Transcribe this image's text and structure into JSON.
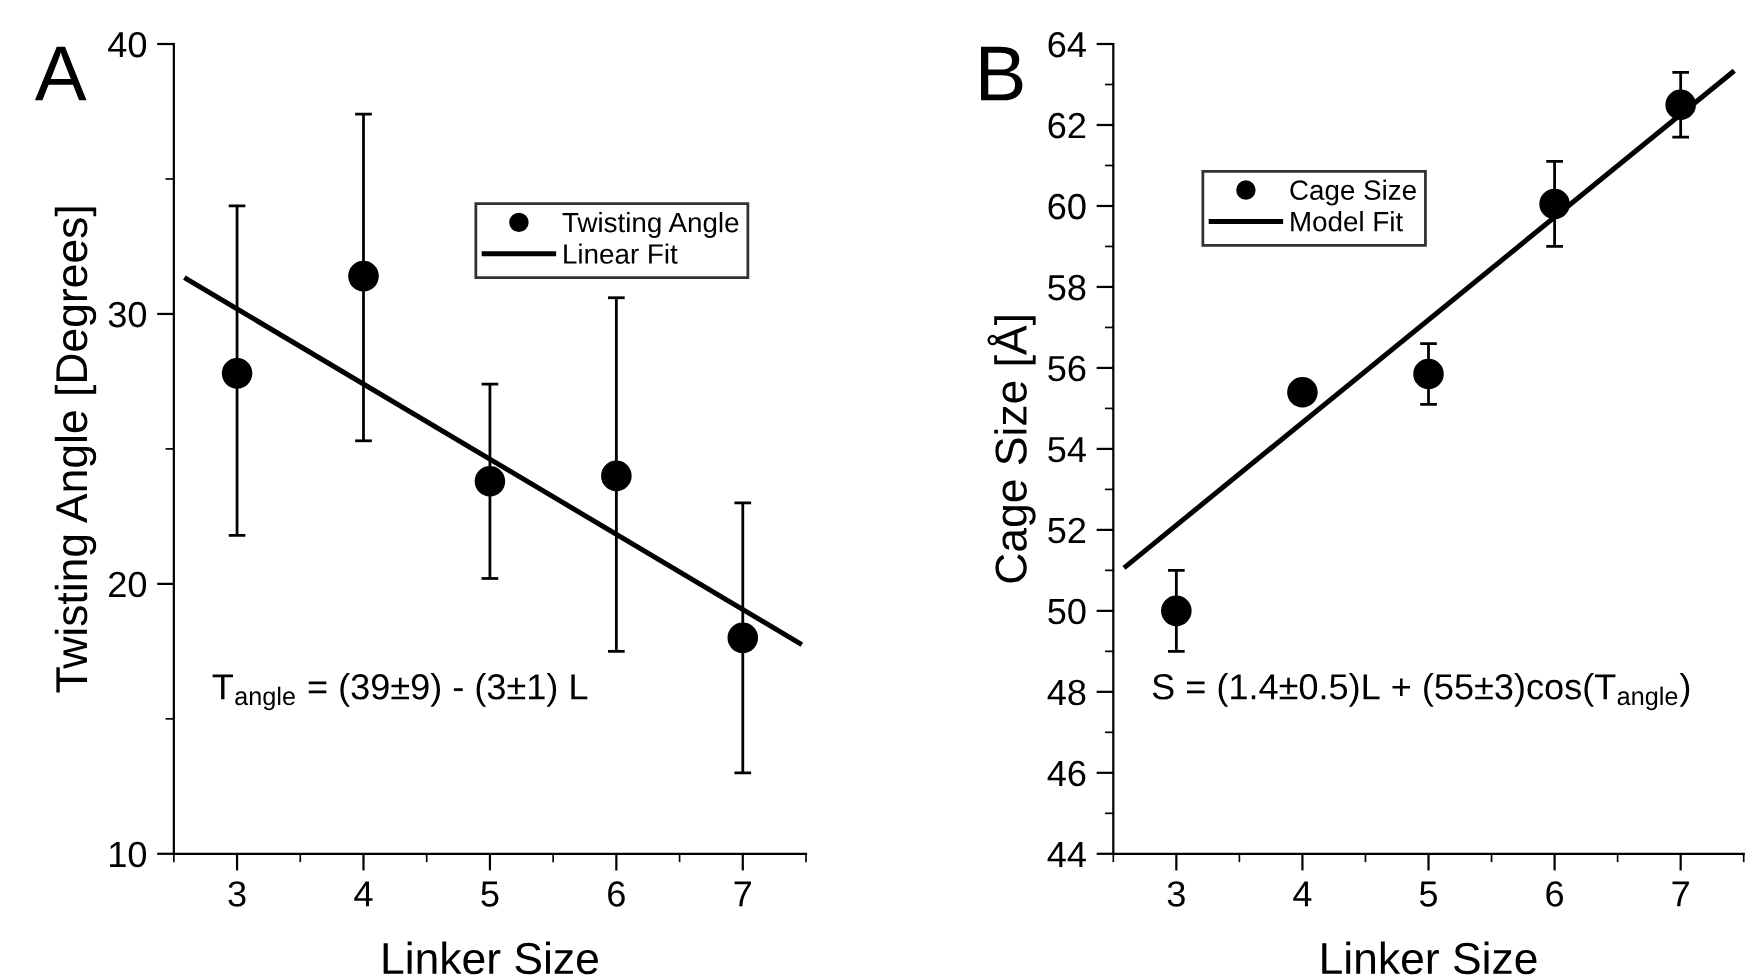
{
  "chart_data": [
    {
      "type": "scatter",
      "xlabel": "Linker Size",
      "ylabel": "Twisting Angle [Degrees]",
      "x": [
        3,
        4,
        5,
        6,
        7
      ],
      "xlim": [
        2.5,
        7.5
      ],
      "xticks": [
        3,
        4,
        5,
        6,
        7
      ],
      "ylim": [
        10,
        40
      ],
      "yticks": [
        10,
        20,
        30,
        40
      ],
      "grid": false,
      "legend": "top right",
      "annotations": [
        "A",
        "T$_{angle}$ = (39±9) - (3±1) L"
      ],
      "series": [
        {
          "name": "Twisting Angle",
          "marker": "circle",
          "color": "#000000",
          "values": [
            27.8,
            31.4,
            23.8,
            24.0,
            18.0
          ],
          "errors": [
            [
              21.8,
              34.0
            ],
            [
              25.3,
              37.4
            ],
            [
              20.2,
              27.4
            ],
            [
              17.5,
              30.6
            ],
            [
              13.0,
              23.0
            ]
          ]
        },
        {
          "name": "Linear Fit",
          "type": "line",
          "color": "#000000",
          "line_style": "solid",
          "x": [
            2.6,
            7.45
          ],
          "values": [
            31.3,
            17.8
          ]
        }
      ]
    },
    {
      "type": "scatter",
      "xlabel": "Linker Size",
      "ylabel": "Cage Size [Å]",
      "x": [
        3,
        4,
        5,
        6,
        7
      ],
      "xlim": [
        2.5,
        7.5
      ],
      "xticks": [
        3,
        4,
        5,
        6,
        7
      ],
      "ylim": [
        44,
        64
      ],
      "yticks": [
        44,
        46,
        48,
        50,
        52,
        54,
        56,
        58,
        60,
        62,
        64
      ],
      "grid": false,
      "legend": "top left",
      "annotations": [
        "B",
        "S = (1.4±0.5)L + (55±3)cos(T$_{angle}$)"
      ],
      "series": [
        {
          "name": "Cage Size",
          "marker": "circle",
          "color": "#000000",
          "values": [
            50.0,
            55.4,
            55.85,
            60.05,
            62.5
          ],
          "errors": [
            [
              49.0,
              51.0
            ],
            null,
            [
              55.1,
              56.6
            ],
            [
              59.0,
              61.1
            ],
            [
              61.7,
              63.3
            ]
          ]
        },
        {
          "name": "Model Fit",
          "type": "line",
          "color": "#000000",
          "line_style": "solid",
          "x": [
            2.6,
            7.41
          ],
          "values": [
            51.1,
            63.3
          ]
        }
      ]
    }
  ]
}
